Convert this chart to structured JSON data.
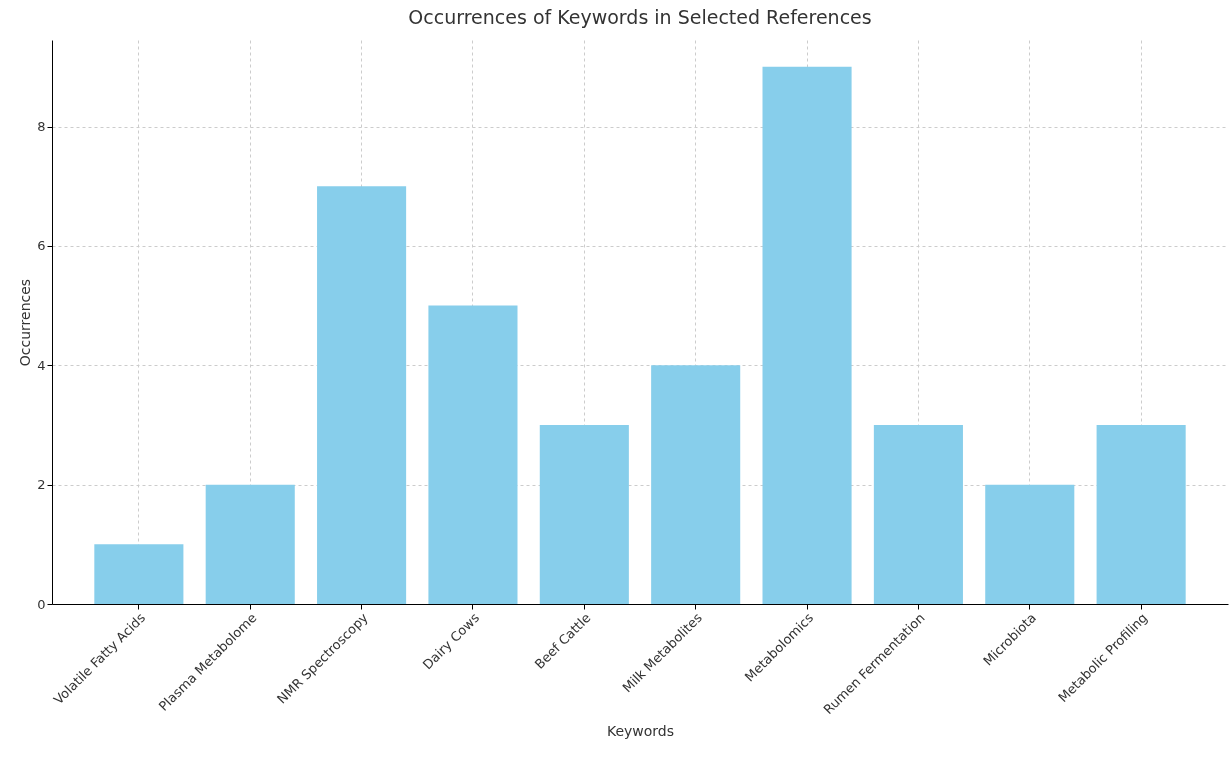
{
  "chart_data": {
    "type": "bar",
    "title": "Occurrences of Keywords in Selected References",
    "xlabel": "Keywords",
    "ylabel": "Occurrences",
    "categories": [
      "Volatile Fatty Acids",
      "Plasma Metabolome",
      "NMR Spectroscopy",
      "Dairy Cows",
      "Beef Cattle",
      "Milk Metabolites",
      "Metabolomics",
      "Rumen Fermentation",
      "Microbiota",
      "Metabolic Profiling"
    ],
    "values": [
      1,
      2,
      7,
      5,
      3,
      4,
      9,
      3,
      2,
      3
    ],
    "color": "#87ceeb",
    "ylim": [
      0,
      9.45
    ],
    "yticks": [
      0,
      2,
      4,
      6,
      8
    ],
    "grid": true
  }
}
